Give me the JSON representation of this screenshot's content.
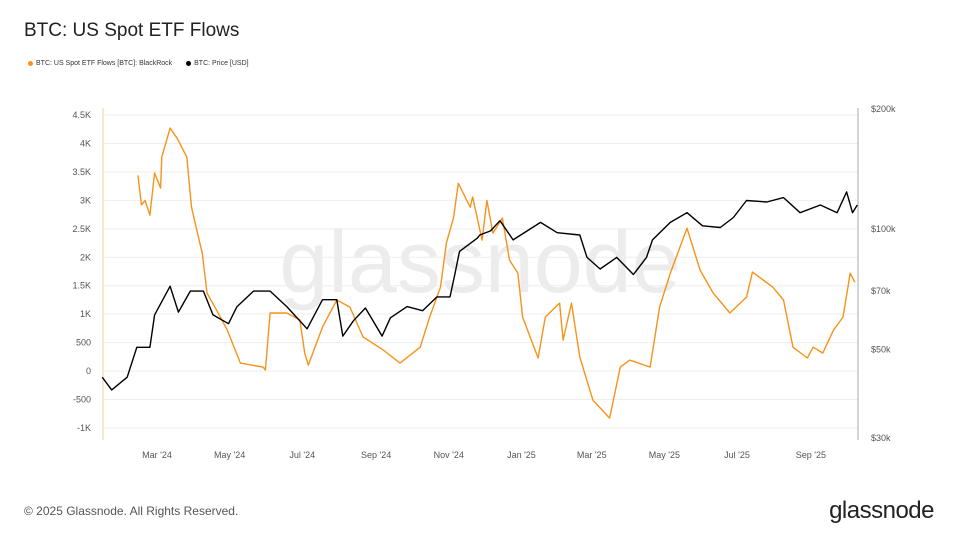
{
  "title": "BTC: US Spot ETF Flows",
  "legend": [
    {
      "label": "BTC: US Spot ETF Flows [BTC]: BlackRock",
      "color": "#f7931a"
    },
    {
      "label": "BTC: Price [USD]",
      "color": "#000000"
    }
  ],
  "watermark": "glassnode",
  "footer": "© 2025 Glassnode. All Rights Reserved.",
  "logo": "glassnode",
  "chart_data": {
    "type": "line",
    "title": "BTC: US Spot ETF Flows",
    "grid": true,
    "legend_position": "top-left",
    "x_ticks": [
      {
        "date": "2024-03-01",
        "label": "Mar '24"
      },
      {
        "date": "2024-05-01",
        "label": "May '24"
      },
      {
        "date": "2024-07-01",
        "label": "Jul '24"
      },
      {
        "date": "2024-09-01",
        "label": "Sep '24"
      },
      {
        "date": "2024-11-01",
        "label": "Nov '24"
      },
      {
        "date": "2025-01-01",
        "label": "Jan '25"
      },
      {
        "date": "2025-03-01",
        "label": "Mar '25"
      },
      {
        "date": "2025-05-01",
        "label": "May '25"
      },
      {
        "date": "2025-07-01",
        "label": "Jul '25"
      },
      {
        "date": "2025-09-01",
        "label": "Sep '25"
      }
    ],
    "x_range": [
      "2024-01-15",
      "2025-10-10"
    ],
    "y_left": {
      "range": [
        -1000,
        4500
      ],
      "scale": "linear",
      "ticks": [
        {
          "value": 4500,
          "label": "4.5K"
        },
        {
          "value": 4000,
          "label": "4K"
        },
        {
          "value": 3500,
          "label": "3.5K"
        },
        {
          "value": 3000,
          "label": "3K"
        },
        {
          "value": 2500,
          "label": "2.5K"
        },
        {
          "value": 2000,
          "label": "2K"
        },
        {
          "value": 1500,
          "label": "1.5K"
        },
        {
          "value": 1000,
          "label": "1K"
        },
        {
          "value": 500,
          "label": "500"
        },
        {
          "value": 0,
          "label": "0"
        },
        {
          "value": -500,
          "label": "-500"
        },
        {
          "value": -1000,
          "label": "-1K"
        }
      ]
    },
    "y_right": {
      "range": [
        30000,
        200000
      ],
      "scale": "log",
      "ticks": [
        {
          "value": 200000,
          "label": "$200k"
        },
        {
          "value": 100000,
          "label": "$100k"
        },
        {
          "value": 70000,
          "label": "$70k"
        },
        {
          "value": 50000,
          "label": "$50k"
        },
        {
          "value": 30000,
          "label": "$30k"
        }
      ]
    },
    "series": [
      {
        "name": "BTC: US Spot ETF Flows [BTC]: BlackRock",
        "axis": "left",
        "color": "#f7931a",
        "points": [
          [
            "2024-02-14",
            3440
          ],
          [
            "2024-02-17",
            2920
          ],
          [
            "2024-02-20",
            3000
          ],
          [
            "2024-02-24",
            2740
          ],
          [
            "2024-02-28",
            3480
          ],
          [
            "2024-03-04",
            3215
          ],
          [
            "2024-03-05",
            3760
          ],
          [
            "2024-03-12",
            4270
          ],
          [
            "2024-03-18",
            4090
          ],
          [
            "2024-03-26",
            3760
          ],
          [
            "2024-03-30",
            2880
          ],
          [
            "2024-04-04",
            2425
          ],
          [
            "2024-04-08",
            2070
          ],
          [
            "2024-04-12",
            1370
          ],
          [
            "2024-04-20",
            1070
          ],
          [
            "2024-04-29",
            720
          ],
          [
            "2024-05-10",
            140
          ],
          [
            "2024-05-29",
            70
          ],
          [
            "2024-05-31",
            20
          ],
          [
            "2024-06-04",
            1020
          ],
          [
            "2024-06-18",
            1020
          ],
          [
            "2024-06-29",
            900
          ],
          [
            "2024-07-03",
            316
          ],
          [
            "2024-07-06",
            105
          ],
          [
            "2024-07-18",
            773
          ],
          [
            "2024-07-30",
            1250
          ],
          [
            "2024-08-10",
            1125
          ],
          [
            "2024-08-21",
            600
          ],
          [
            "2024-09-07",
            370
          ],
          [
            "2024-09-21",
            140
          ],
          [
            "2024-10-08",
            420
          ],
          [
            "2024-10-16",
            950
          ],
          [
            "2024-10-25",
            1475
          ],
          [
            "2024-10-30",
            2250
          ],
          [
            "2024-11-05",
            2700
          ],
          [
            "2024-11-09",
            3300
          ],
          [
            "2024-11-19",
            2880
          ],
          [
            "2024-11-21",
            3060
          ],
          [
            "2024-11-29",
            2300
          ],
          [
            "2024-12-03",
            3000
          ],
          [
            "2024-12-08",
            2425
          ],
          [
            "2024-12-16",
            2690
          ],
          [
            "2024-12-22",
            1950
          ],
          [
            "2024-12-29",
            1720
          ],
          [
            "2025-01-02",
            950
          ],
          [
            "2025-01-15",
            230
          ],
          [
            "2025-01-21",
            950
          ],
          [
            "2025-02-02",
            1195
          ],
          [
            "2025-02-05",
            545
          ],
          [
            "2025-02-12",
            1195
          ],
          [
            "2025-02-19",
            245
          ],
          [
            "2025-03-02",
            -510
          ],
          [
            "2025-03-16",
            -826
          ],
          [
            "2025-03-25",
            70
          ],
          [
            "2025-04-02",
            193
          ],
          [
            "2025-04-19",
            70
          ],
          [
            "2025-04-27",
            1125
          ],
          [
            "2025-05-06",
            1720
          ],
          [
            "2025-05-20",
            2510
          ],
          [
            "2025-05-31",
            1775
          ],
          [
            "2025-06-11",
            1370
          ],
          [
            "2025-06-25",
            1020
          ],
          [
            "2025-07-09",
            1300
          ],
          [
            "2025-07-14",
            1740
          ],
          [
            "2025-07-23",
            1600
          ],
          [
            "2025-07-31",
            1475
          ],
          [
            "2025-08-09",
            1250
          ],
          [
            "2025-08-17",
            420
          ],
          [
            "2025-08-29",
            230
          ],
          [
            "2025-09-03",
            420
          ],
          [
            "2025-09-11",
            316
          ],
          [
            "2025-09-20",
            720
          ],
          [
            "2025-09-28",
            950
          ],
          [
            "2025-10-04",
            1720
          ],
          [
            "2025-10-08",
            1560
          ]
        ]
      },
      {
        "name": "BTC: Price [USD]",
        "axis": "right",
        "color": "#000000",
        "points": [
          [
            "2024-01-15",
            42600
          ],
          [
            "2024-01-23",
            39600
          ],
          [
            "2024-02-05",
            42600
          ],
          [
            "2024-02-13",
            50600
          ],
          [
            "2024-02-24",
            50600
          ],
          [
            "2024-02-28",
            61000
          ],
          [
            "2024-03-12",
            72000
          ],
          [
            "2024-03-19",
            62000
          ],
          [
            "2024-03-29",
            70000
          ],
          [
            "2024-04-09",
            70000
          ],
          [
            "2024-04-17",
            61000
          ],
          [
            "2024-04-30",
            58000
          ],
          [
            "2024-05-07",
            63900
          ],
          [
            "2024-05-21",
            70000
          ],
          [
            "2024-06-04",
            70000
          ],
          [
            "2024-06-18",
            64000
          ],
          [
            "2024-07-05",
            56300
          ],
          [
            "2024-07-18",
            66600
          ],
          [
            "2024-07-30",
            66600
          ],
          [
            "2024-08-04",
            54000
          ],
          [
            "2024-08-13",
            59000
          ],
          [
            "2024-08-23",
            63500
          ],
          [
            "2024-09-06",
            54000
          ],
          [
            "2024-09-13",
            60000
          ],
          [
            "2024-09-27",
            64000
          ],
          [
            "2024-10-10",
            62500
          ],
          [
            "2024-10-22",
            67700
          ],
          [
            "2024-11-02",
            67700
          ],
          [
            "2024-11-06",
            77000
          ],
          [
            "2024-11-10",
            88000
          ],
          [
            "2024-11-25",
            95000
          ],
          [
            "2024-11-27",
            96700
          ],
          [
            "2024-12-06",
            99000
          ],
          [
            "2024-12-14",
            105000
          ],
          [
            "2024-12-25",
            94000
          ],
          [
            "2025-01-17",
            104000
          ],
          [
            "2025-01-31",
            98000
          ],
          [
            "2025-02-19",
            96700
          ],
          [
            "2025-02-25",
            85000
          ],
          [
            "2025-03-08",
            79500
          ],
          [
            "2025-03-22",
            85000
          ],
          [
            "2025-04-05",
            77000
          ],
          [
            "2025-04-16",
            85000
          ],
          [
            "2025-04-21",
            94000
          ],
          [
            "2025-05-06",
            104000
          ],
          [
            "2025-05-20",
            110000
          ],
          [
            "2025-06-02",
            102000
          ],
          [
            "2025-06-17",
            101000
          ],
          [
            "2025-06-28",
            107000
          ],
          [
            "2025-07-09",
            118000
          ],
          [
            "2025-07-26",
            117000
          ],
          [
            "2025-08-09",
            120000
          ],
          [
            "2025-08-23",
            110000
          ],
          [
            "2025-09-09",
            115000
          ],
          [
            "2025-09-23",
            110000
          ],
          [
            "2025-10-01",
            124000
          ],
          [
            "2025-10-06",
            110000
          ],
          [
            "2025-10-10",
            115000
          ]
        ]
      }
    ]
  }
}
